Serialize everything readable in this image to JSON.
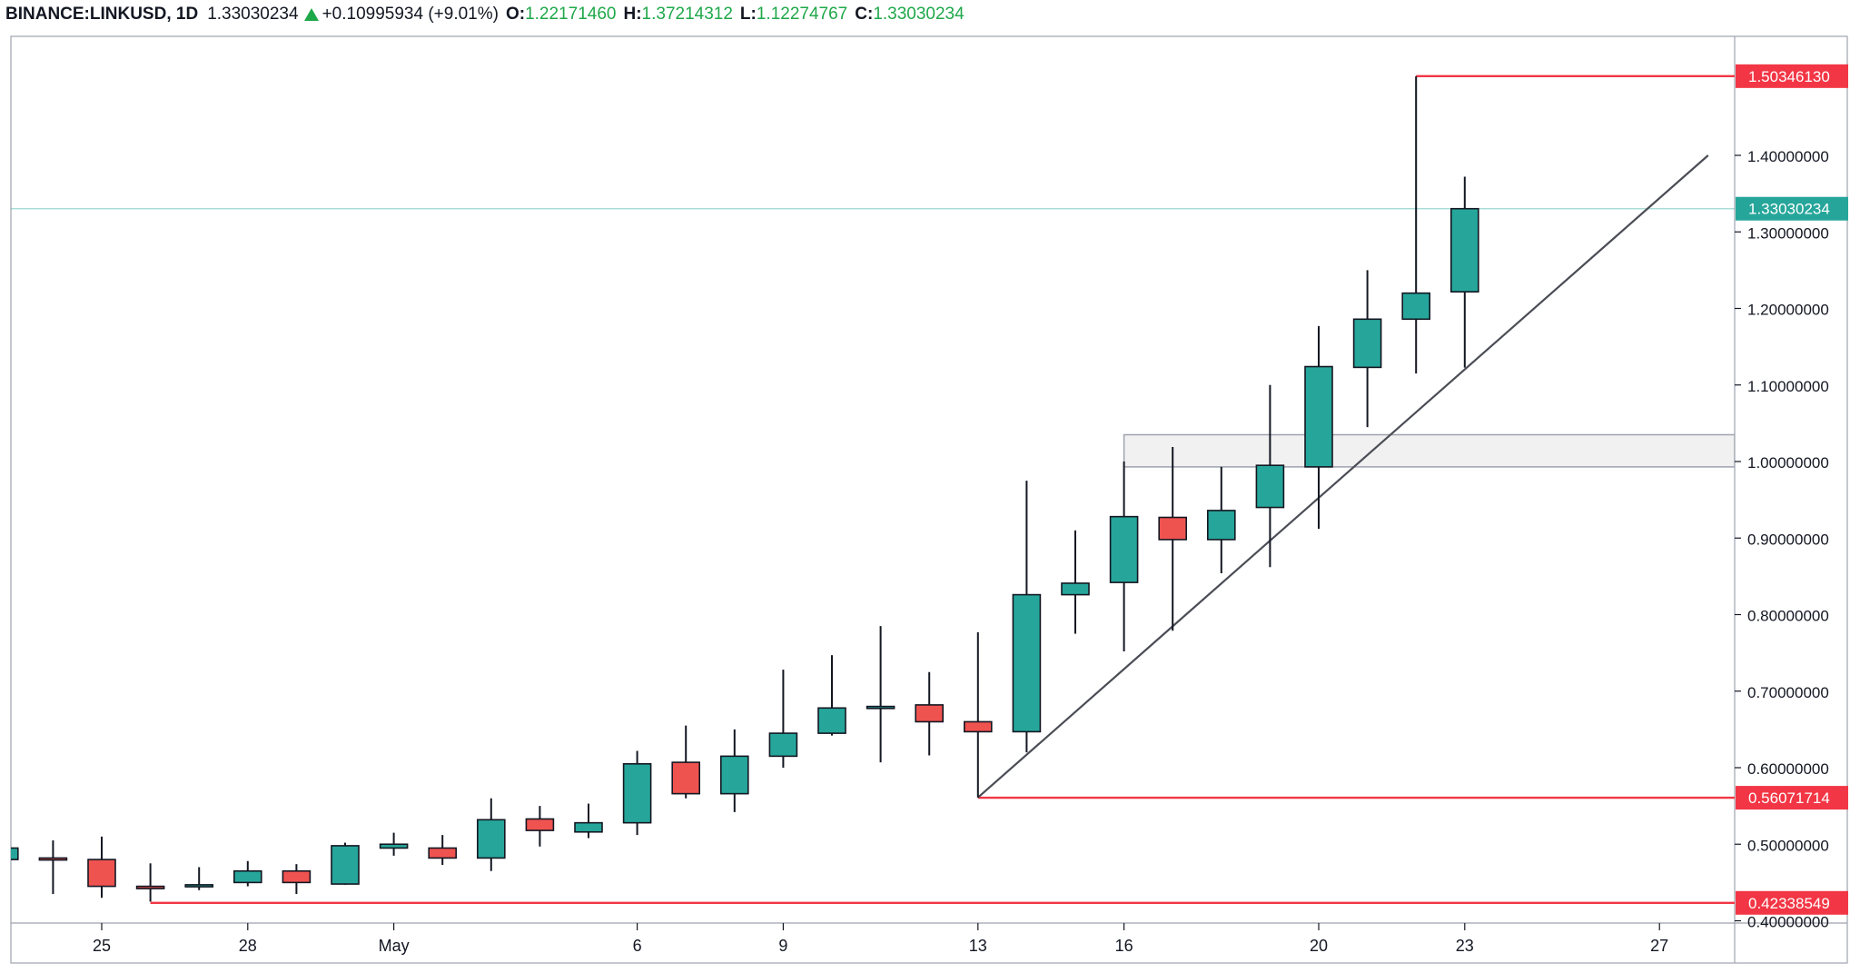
{
  "header": {
    "symbol": "BINANCE:LINKUSD, 1D",
    "price": "1.33030234",
    "change": "+0.10995934 (+9.01%)",
    "o_label": "O:",
    "o": "1.22171460",
    "h_label": "H:",
    "h": "1.37214312",
    "l_label": "L:",
    "l": "1.12274767",
    "c_label": "C:",
    "c": "1.33030234"
  },
  "colors": {
    "up": "#26a69a",
    "down": "#ef5350",
    "wick": "#131722",
    "level": "#f23645",
    "price_line": "#26a69a"
  },
  "chart_data": {
    "type": "candlestick",
    "ylim": [
      0.39,
      1.565
    ],
    "y_ticks": [
      {
        "value": 0.4,
        "label": "0.40000000"
      },
      {
        "value": 0.5,
        "label": "0.50000000"
      },
      {
        "value": 0.6,
        "label": "0.60000000"
      },
      {
        "value": 0.7,
        "label": "0.70000000"
      },
      {
        "value": 0.8,
        "label": "0.80000000"
      },
      {
        "value": 0.9,
        "label": "0.90000000"
      },
      {
        "value": 1.0,
        "label": "1.00000000"
      },
      {
        "value": 1.1,
        "label": "1.10000000"
      },
      {
        "value": 1.2,
        "label": "1.20000000"
      },
      {
        "value": 1.3,
        "label": "1.30000000"
      },
      {
        "value": 1.4,
        "label": "1.40000000"
      }
    ],
    "x_ticks": [
      {
        "day": 25,
        "label": "25"
      },
      {
        "day": 28,
        "label": "28"
      },
      {
        "day": 31,
        "label": "May"
      },
      {
        "day": 36,
        "label": "6"
      },
      {
        "day": 39,
        "label": "9"
      },
      {
        "day": 43,
        "label": "13"
      },
      {
        "day": 46,
        "label": "16"
      },
      {
        "day": 50,
        "label": "20"
      },
      {
        "day": 53,
        "label": "23"
      },
      {
        "day": 57,
        "label": "27"
      }
    ],
    "candles": [
      {
        "day": 23,
        "o": 0.48,
        "h": 0.5,
        "l": 0.475,
        "c": 0.495
      },
      {
        "day": 24,
        "o": 0.482,
        "h": 0.505,
        "l": 0.435,
        "c": 0.48
      },
      {
        "day": 25,
        "o": 0.48,
        "h": 0.51,
        "l": 0.43,
        "c": 0.445
      },
      {
        "day": 26,
        "o": 0.445,
        "h": 0.475,
        "l": 0.425,
        "c": 0.442
      },
      {
        "day": 27,
        "o": 0.445,
        "h": 0.47,
        "l": 0.44,
        "c": 0.447
      },
      {
        "day": 28,
        "o": 0.45,
        "h": 0.478,
        "l": 0.445,
        "c": 0.465
      },
      {
        "day": 29,
        "o": 0.465,
        "h": 0.474,
        "l": 0.435,
        "c": 0.45
      },
      {
        "day": 30,
        "o": 0.448,
        "h": 0.502,
        "l": 0.447,
        "c": 0.498
      },
      {
        "day": 31,
        "o": 0.495,
        "h": 0.515,
        "l": 0.485,
        "c": 0.5
      },
      {
        "day": 32,
        "o": 0.495,
        "h": 0.512,
        "l": 0.473,
        "c": 0.482
      },
      {
        "day": 33,
        "o": 0.482,
        "h": 0.56,
        "l": 0.465,
        "c": 0.532
      },
      {
        "day": 34,
        "o": 0.533,
        "h": 0.55,
        "l": 0.497,
        "c": 0.518
      },
      {
        "day": 35,
        "o": 0.516,
        "h": 0.553,
        "l": 0.508,
        "c": 0.528
      },
      {
        "day": 36,
        "o": 0.528,
        "h": 0.622,
        "l": 0.512,
        "c": 0.605
      },
      {
        "day": 37,
        "o": 0.607,
        "h": 0.655,
        "l": 0.56,
        "c": 0.566
      },
      {
        "day": 38,
        "o": 0.566,
        "h": 0.65,
        "l": 0.542,
        "c": 0.615
      },
      {
        "day": 39,
        "o": 0.615,
        "h": 0.728,
        "l": 0.6,
        "c": 0.645
      },
      {
        "day": 40,
        "o": 0.645,
        "h": 0.747,
        "l": 0.642,
        "c": 0.678
      },
      {
        "day": 41,
        "o": 0.68,
        "h": 0.785,
        "l": 0.607,
        "c": 0.68
      },
      {
        "day": 42,
        "o": 0.682,
        "h": 0.725,
        "l": 0.616,
        "c": 0.66
      },
      {
        "day": 43,
        "o": 0.66,
        "h": 0.777,
        "l": 0.561,
        "c": 0.647
      },
      {
        "day": 44,
        "o": 0.647,
        "h": 0.975,
        "l": 0.62,
        "c": 0.826
      },
      {
        "day": 45,
        "o": 0.826,
        "h": 0.91,
        "l": 0.775,
        "c": 0.841
      },
      {
        "day": 46,
        "o": 0.842,
        "h": 1.0,
        "l": 0.752,
        "c": 0.928
      },
      {
        "day": 47,
        "o": 0.927,
        "h": 1.019,
        "l": 0.779,
        "c": 0.898
      },
      {
        "day": 48,
        "o": 0.898,
        "h": 0.993,
        "l": 0.854,
        "c": 0.936
      },
      {
        "day": 49,
        "o": 0.94,
        "h": 1.1,
        "l": 0.862,
        "c": 0.995
      },
      {
        "day": 50,
        "o": 0.993,
        "h": 1.177,
        "l": 0.912,
        "c": 1.124
      },
      {
        "day": 51,
        "o": 1.123,
        "h": 1.25,
        "l": 1.045,
        "c": 1.186
      },
      {
        "day": 52,
        "o": 1.186,
        "h": 1.503,
        "l": 1.115,
        "c": 1.22
      },
      {
        "day": 53,
        "o": 1.2217146,
        "h": 1.37214312,
        "l": 1.12274767,
        "c": 1.33030234
      }
    ],
    "levels": [
      {
        "value": 1.5034613,
        "label": "1.50346130",
        "from_day": 52
      },
      {
        "value": 0.56071714,
        "label": "0.56071714",
        "from_day": 43
      },
      {
        "value": 0.42338549,
        "label": "0.42338549",
        "from_day": 26
      }
    ],
    "last_price": {
      "value": 1.33030234,
      "label": "1.33030234"
    },
    "zone": {
      "from_day": 46,
      "y1": 0.993,
      "y2": 1.035
    },
    "trendline": {
      "from": {
        "day": 43,
        "value": 0.561
      },
      "to": {
        "day": 58,
        "value": 1.4
      }
    }
  }
}
